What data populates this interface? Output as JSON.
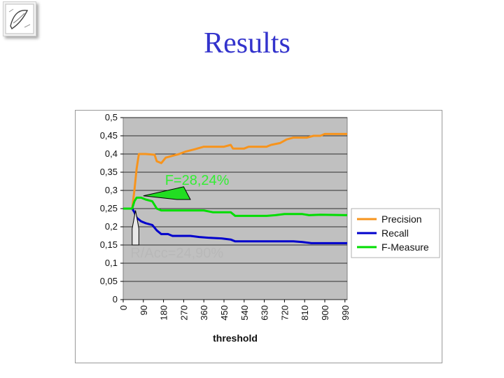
{
  "slide": {
    "title": "Results"
  },
  "chart_data": {
    "type": "line",
    "xlabel": "threshold",
    "ylabel": "",
    "ylim": [
      0,
      0.5
    ],
    "xlim": [
      0,
      1000
    ],
    "y_ticks": [
      "0",
      "0,05",
      "0,1",
      "0,15",
      "0,2",
      "0,25",
      "0,3",
      "0,35",
      "0,4",
      "0,45",
      "0,5"
    ],
    "x_ticks": [
      "0",
      "90",
      "180",
      "270",
      "360",
      "450",
      "540",
      "630",
      "720",
      "810",
      "900",
      "990"
    ],
    "plot_background": "#c0c0c0",
    "grid": true,
    "legend_position": "right",
    "series": [
      {
        "name": "Precision",
        "color": "#f7941d",
        "points": [
          [
            0,
            0.25
          ],
          [
            40,
            0.25
          ],
          [
            50,
            0.3
          ],
          [
            60,
            0.36
          ],
          [
            70,
            0.4
          ],
          [
            80,
            0.4
          ],
          [
            100,
            0.4
          ],
          [
            140,
            0.398
          ],
          [
            150,
            0.38
          ],
          [
            170,
            0.375
          ],
          [
            190,
            0.39
          ],
          [
            220,
            0.395
          ],
          [
            250,
            0.4
          ],
          [
            280,
            0.407
          ],
          [
            320,
            0.413
          ],
          [
            360,
            0.42
          ],
          [
            380,
            0.42
          ],
          [
            420,
            0.42
          ],
          [
            450,
            0.42
          ],
          [
            480,
            0.425
          ],
          [
            490,
            0.415
          ],
          [
            540,
            0.415
          ],
          [
            560,
            0.42
          ],
          [
            640,
            0.42
          ],
          [
            660,
            0.425
          ],
          [
            700,
            0.43
          ],
          [
            730,
            0.44
          ],
          [
            760,
            0.445
          ],
          [
            820,
            0.445
          ],
          [
            850,
            0.45
          ],
          [
            880,
            0.45
          ],
          [
            900,
            0.455
          ],
          [
            1000,
            0.455
          ]
        ]
      },
      {
        "name": "Recall",
        "color": "#0000cc",
        "points": [
          [
            0,
            0.25
          ],
          [
            40,
            0.25
          ],
          [
            50,
            0.24
          ],
          [
            60,
            0.225
          ],
          [
            80,
            0.215
          ],
          [
            100,
            0.21
          ],
          [
            130,
            0.205
          ],
          [
            150,
            0.19
          ],
          [
            170,
            0.18
          ],
          [
            200,
            0.18
          ],
          [
            220,
            0.175
          ],
          [
            260,
            0.175
          ],
          [
            300,
            0.175
          ],
          [
            340,
            0.172
          ],
          [
            380,
            0.17
          ],
          [
            440,
            0.168
          ],
          [
            480,
            0.165
          ],
          [
            500,
            0.16
          ],
          [
            560,
            0.16
          ],
          [
            660,
            0.16
          ],
          [
            760,
            0.16
          ],
          [
            800,
            0.158
          ],
          [
            840,
            0.155
          ],
          [
            1000,
            0.155
          ]
        ]
      },
      {
        "name": "F-Measure",
        "color": "#00dd00",
        "points": [
          [
            0,
            0.25
          ],
          [
            40,
            0.25
          ],
          [
            50,
            0.27
          ],
          [
            60,
            0.28
          ],
          [
            80,
            0.28
          ],
          [
            100,
            0.275
          ],
          [
            130,
            0.27
          ],
          [
            150,
            0.25
          ],
          [
            170,
            0.245
          ],
          [
            200,
            0.245
          ],
          [
            240,
            0.245
          ],
          [
            280,
            0.245
          ],
          [
            320,
            0.245
          ],
          [
            360,
            0.245
          ],
          [
            400,
            0.24
          ],
          [
            440,
            0.24
          ],
          [
            480,
            0.24
          ],
          [
            500,
            0.23
          ],
          [
            560,
            0.23
          ],
          [
            640,
            0.23
          ],
          [
            680,
            0.232
          ],
          [
            720,
            0.235
          ],
          [
            800,
            0.235
          ],
          [
            830,
            0.232
          ],
          [
            880,
            0.233
          ],
          [
            1000,
            0.232
          ]
        ]
      }
    ],
    "annotations": [
      {
        "text": "F=28,24%",
        "color": "#33ee33",
        "fill": "#22dd22"
      },
      {
        "text": "R/Acc=24,90%",
        "color": "#b8b8b8",
        "fill": "#e8e8e8"
      }
    ]
  }
}
